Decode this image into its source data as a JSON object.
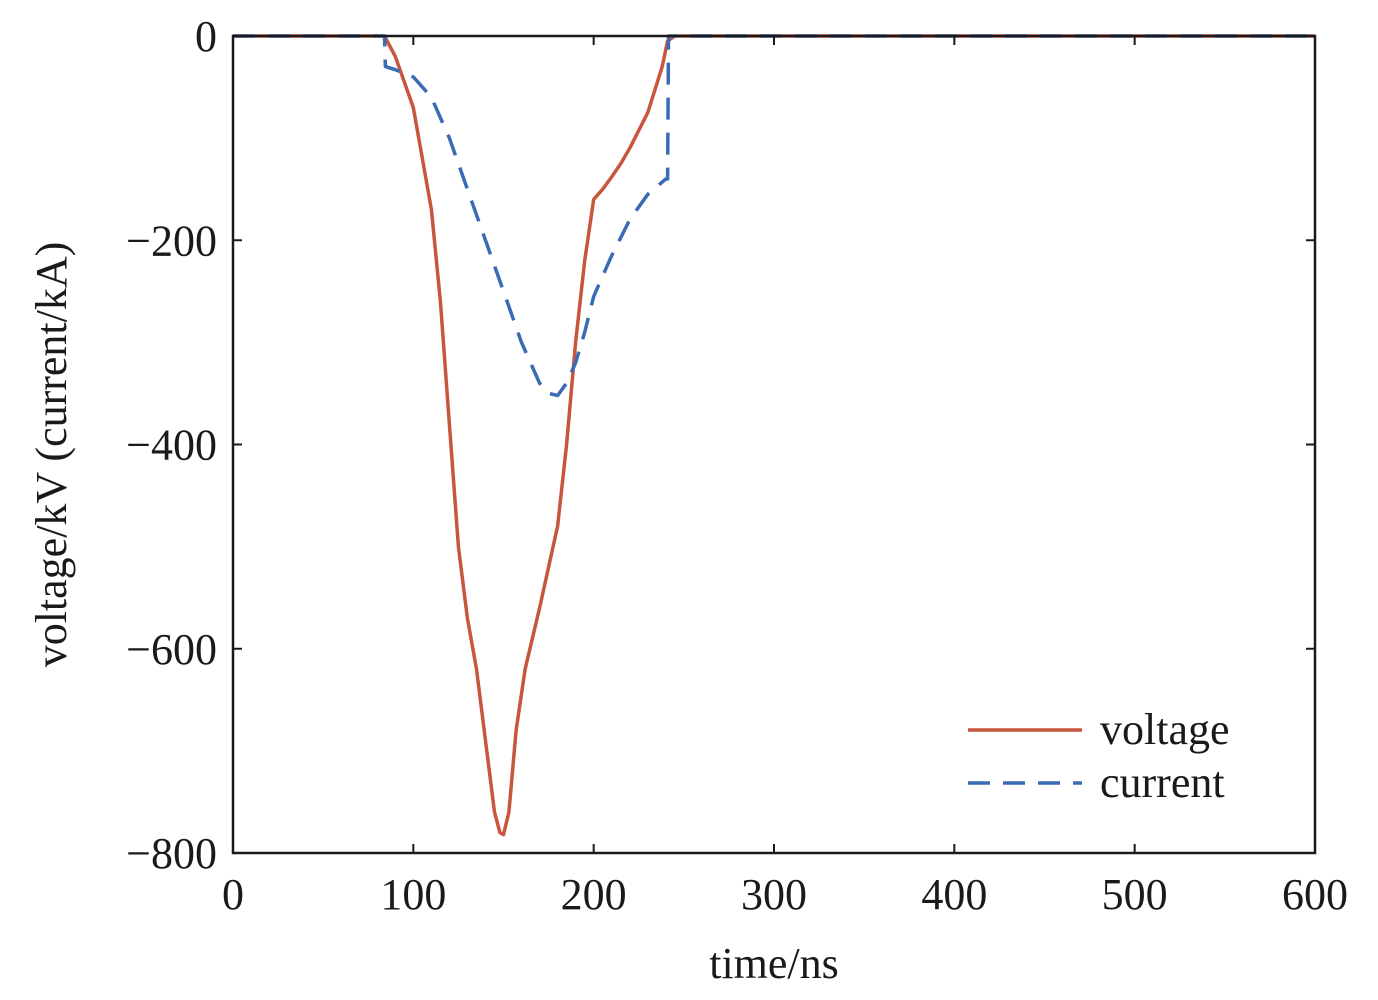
{
  "chart_data": {
    "type": "line",
    "xlabel": "time/ns",
    "ylabel": "voltage/kV (current/kA)",
    "xlim": [
      0,
      600
    ],
    "ylim": [
      -800,
      0
    ],
    "xticks": [
      0,
      100,
      200,
      300,
      400,
      500,
      600
    ],
    "yticks": [
      0,
      -200,
      -400,
      -600,
      -800
    ],
    "ytick_labels": [
      "0",
      "−200",
      "−400",
      "−600",
      "−800"
    ],
    "grid": false,
    "legend_position": "bottom-right",
    "series": [
      {
        "name": "voltage",
        "color": "#c8553d",
        "style": "solid",
        "x": [
          0,
          84,
          90,
          100,
          110,
          115,
          120,
          125,
          130,
          135,
          140,
          145,
          148,
          150,
          153,
          157,
          162,
          170,
          180,
          185,
          190,
          195,
          200,
          205,
          210,
          215,
          220,
          230,
          238,
          241,
          245,
          600
        ],
        "y": [
          0,
          0,
          -20,
          -70,
          -170,
          -260,
          -380,
          -500,
          -570,
          -620,
          -690,
          -760,
          -780,
          -782,
          -760,
          -680,
          -620,
          -560,
          -480,
          -400,
          -300,
          -220,
          -160,
          -150,
          -138,
          -125,
          -110,
          -75,
          -30,
          -5,
          0,
          0
        ]
      },
      {
        "name": "current",
        "color": "#3a6bb5",
        "style": "dashed",
        "x": [
          0,
          84,
          84.5,
          90,
          100,
          110,
          120,
          130,
          140,
          150,
          160,
          170,
          175,
          180,
          185,
          190,
          195,
          200,
          210,
          220,
          230,
          240,
          241,
          241.5,
          600
        ],
        "y": [
          0,
          0,
          -30,
          -33,
          -40,
          -60,
          -100,
          -150,
          -200,
          -250,
          -300,
          -340,
          -350,
          -352,
          -340,
          -320,
          -290,
          -255,
          -215,
          -180,
          -155,
          -140,
          -140,
          0,
          0
        ]
      }
    ]
  }
}
